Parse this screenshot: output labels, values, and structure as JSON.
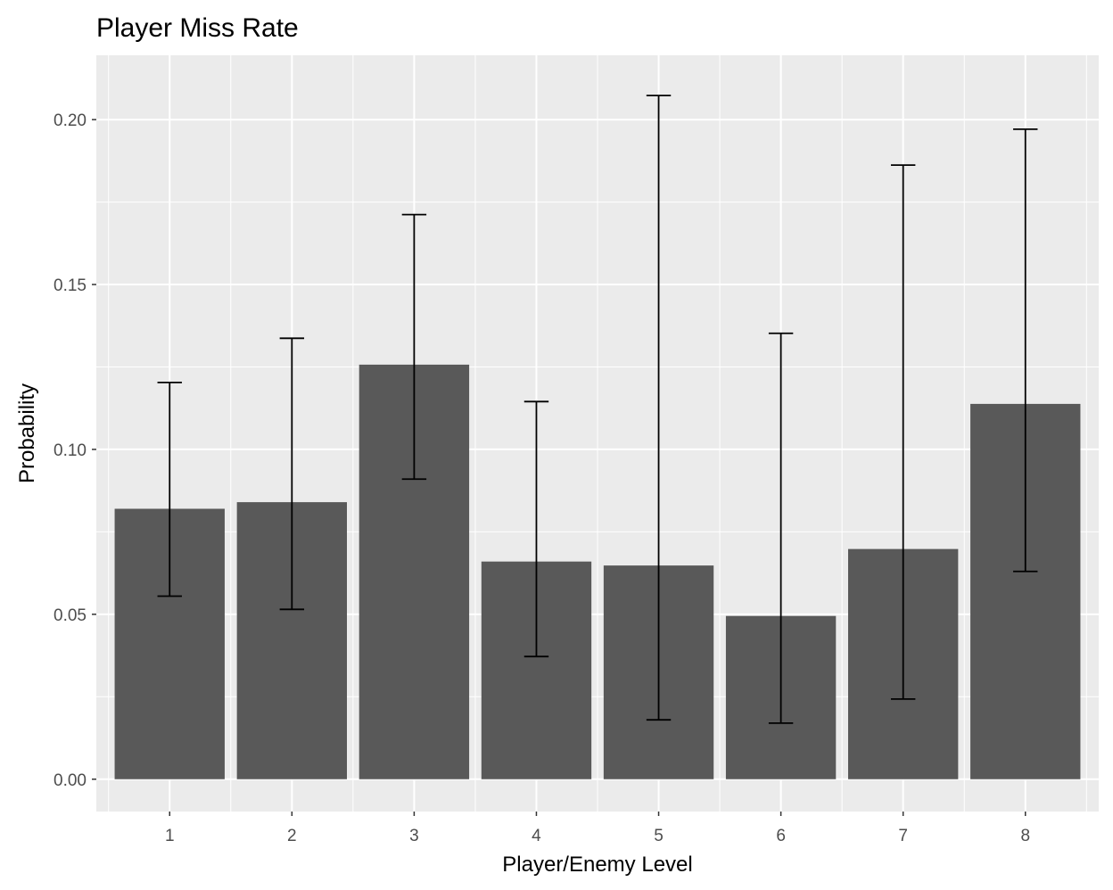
{
  "chart_data": {
    "type": "bar",
    "title": "Player Miss Rate",
    "xlabel": "Player/Enemy Level",
    "ylabel": "Probability",
    "categories": [
      "1",
      "2",
      "3",
      "4",
      "5",
      "6",
      "7",
      "8"
    ],
    "values": [
      0.082,
      0.084,
      0.1257,
      0.066,
      0.0648,
      0.0495,
      0.0698,
      0.1138
    ],
    "error_low": [
      0.0555,
      0.0515,
      0.091,
      0.0372,
      0.018,
      0.017,
      0.0243,
      0.063
    ],
    "error_high": [
      0.1203,
      0.1337,
      0.1712,
      0.1145,
      0.2073,
      0.1352,
      0.1862,
      0.1971
    ],
    "ylim": [
      -0.0098,
      0.2195
    ],
    "yticks": [
      0.0,
      0.05,
      0.1,
      0.15,
      0.2
    ],
    "ytick_labels": [
      "0.00",
      "0.05",
      "0.10",
      "0.15",
      "0.20"
    ],
    "grid": true,
    "legend": "none",
    "colors": {
      "panel": "#ebebeb",
      "grid_major": "#ffffff",
      "bar": "#595959",
      "errorbar": "#000000",
      "tick": "#333333"
    }
  }
}
